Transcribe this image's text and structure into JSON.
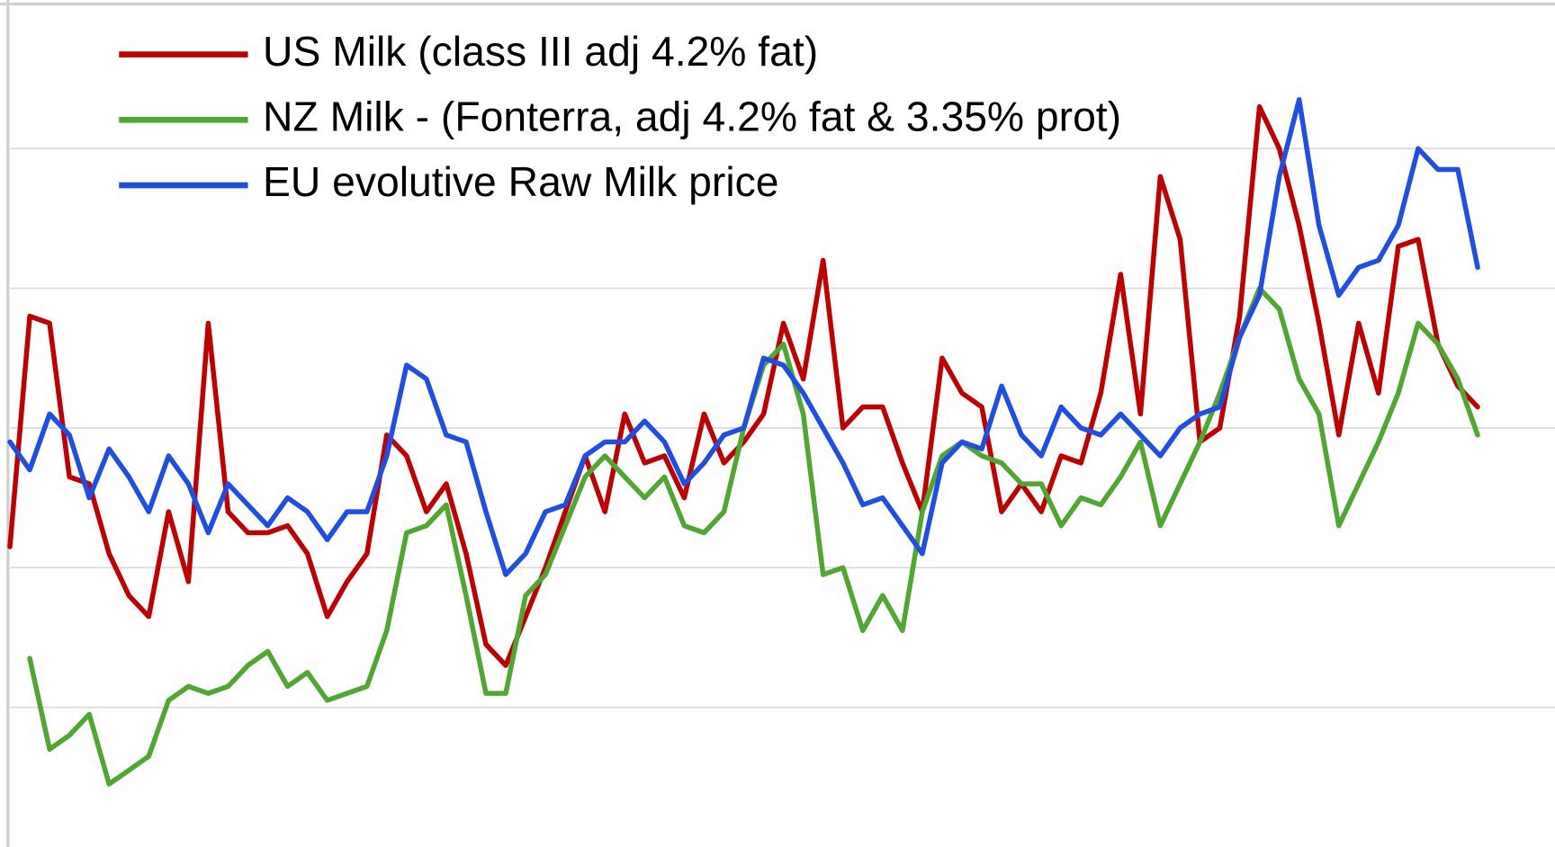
{
  "chart_data": {
    "type": "line",
    "x": [
      0,
      1,
      2,
      3,
      4,
      5,
      6,
      7,
      8,
      9,
      10,
      11,
      12,
      13,
      14,
      15,
      16,
      17,
      18,
      19,
      20,
      21,
      22,
      23,
      24,
      25,
      26,
      27,
      28,
      29,
      30,
      31,
      32,
      33,
      34,
      35,
      36,
      37,
      38,
      39,
      40,
      41,
      42,
      43,
      44,
      45,
      46,
      47,
      48,
      49,
      50,
      51,
      52,
      53,
      54,
      55,
      56,
      57,
      58,
      59,
      60,
      61,
      62,
      63,
      64,
      65,
      66,
      67,
      68,
      69,
      70,
      71,
      72,
      73,
      74
    ],
    "xlim": [
      0,
      74
    ],
    "ylim": [
      0,
      600
    ],
    "yticks": [
      100,
      200,
      300,
      400,
      500
    ],
    "grid": true,
    "legend": "upper left",
    "series": [
      {
        "name": "US Milk (class III adj 4.2% fat)",
        "color": "#c00000",
        "values": [
          215,
          380,
          375,
          265,
          260,
          210,
          180,
          165,
          240,
          190,
          375,
          240,
          225,
          225,
          230,
          210,
          165,
          190,
          210,
          295,
          280,
          240,
          260,
          210,
          145,
          130,
          165,
          200,
          240,
          280,
          240,
          310,
          275,
          280,
          250,
          310,
          275,
          290,
          310,
          375,
          335,
          420,
          300,
          315,
          315,
          275,
          240,
          350,
          325,
          315,
          240,
          260,
          240,
          280,
          275,
          325,
          410,
          310,
          480,
          435,
          290,
          300,
          380,
          530,
          500,
          445,
          375,
          295,
          375,
          325,
          430,
          435,
          360,
          330,
          315
        ]
      },
      {
        "name": "NZ Milk - (Fonterra, adj 4.2% fat & 3.35% prot)",
        "color": "#4ea72e",
        "values": [
          null,
          135,
          70,
          80,
          95,
          45,
          55,
          65,
          105,
          115,
          110,
          115,
          130,
          140,
          115,
          125,
          105,
          110,
          115,
          155,
          225,
          230,
          245,
          180,
          110,
          110,
          180,
          195,
          230,
          265,
          280,
          265,
          250,
          265,
          230,
          225,
          240,
          300,
          345,
          360,
          310,
          195,
          200,
          155,
          180,
          155,
          240,
          280,
          290,
          280,
          275,
          260,
          260,
          230,
          250,
          245,
          265,
          290,
          230,
          260,
          290,
          325,
          365,
          400,
          385,
          335,
          310,
          230,
          260,
          290,
          325,
          375,
          360,
          335,
          295
        ]
      },
      {
        "name": "EU evolutive Raw Milk price",
        "color": "#1f4ee6",
        "values": [
          290,
          270,
          310,
          295,
          250,
          285,
          265,
          240,
          280,
          260,
          225,
          260,
          245,
          230,
          250,
          240,
          220,
          240,
          240,
          280,
          345,
          335,
          295,
          290,
          240,
          195,
          210,
          240,
          245,
          280,
          290,
          290,
          305,
          290,
          260,
          275,
          295,
          300,
          350,
          345,
          325,
          300,
          275,
          245,
          250,
          230,
          210,
          275,
          290,
          285,
          330,
          295,
          280,
          315,
          300,
          295,
          310,
          295,
          280,
          300,
          310,
          315,
          365,
          395,
          480,
          535,
          445,
          395,
          415,
          420,
          445,
          500,
          485,
          485,
          415
        ]
      }
    ]
  }
}
